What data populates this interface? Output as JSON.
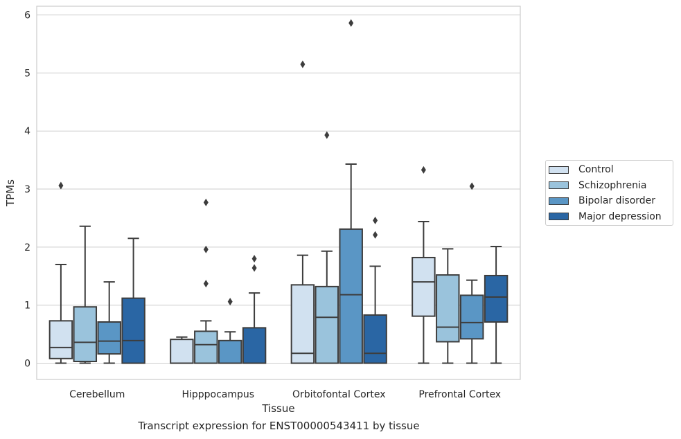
{
  "chart_data": {
    "type": "box",
    "xlabel": "Tissue",
    "ylabel": "TPMs",
    "caption": "Transcript expression for ENST00000543411 by tissue",
    "categories": [
      "Cerebellum",
      "Hipppocampus",
      "Orbitofontal Cortex",
      "Prefrontal Cortex"
    ],
    "ylim": [
      -0.28,
      6.15
    ],
    "yticks": [
      0,
      1,
      2,
      3,
      4,
      5,
      6
    ],
    "grid": "horizontal",
    "legend_position": "right",
    "series": [
      {
        "name": "Control",
        "color": "#d1e1f0",
        "boxes": [
          {
            "whislo": 0.0,
            "q1": 0.08,
            "med": 0.27,
            "q3": 0.73,
            "whishi": 1.7,
            "fliers": [
              3.06
            ]
          },
          {
            "whislo": 0.0,
            "q1": 0.0,
            "med": 0.0,
            "q3": 0.41,
            "whishi": 0.45,
            "fliers": []
          },
          {
            "whislo": 0.0,
            "q1": 0.0,
            "med": 0.17,
            "q3": 1.35,
            "whishi": 1.86,
            "fliers": [
              5.15
            ]
          },
          {
            "whislo": 0.0,
            "q1": 0.81,
            "med": 1.4,
            "q3": 1.82,
            "whishi": 2.44,
            "fliers": [
              3.33
            ]
          }
        ]
      },
      {
        "name": "Schizophrenia",
        "color": "#9ac3dc",
        "boxes": [
          {
            "whislo": 0.0,
            "q1": 0.03,
            "med": 0.36,
            "q3": 0.97,
            "whishi": 2.36,
            "fliers": []
          },
          {
            "whislo": 0.0,
            "q1": 0.0,
            "med": 0.32,
            "q3": 0.55,
            "whishi": 0.73,
            "fliers": [
              1.37,
              1.96,
              2.77
            ]
          },
          {
            "whislo": 0.0,
            "q1": 0.0,
            "med": 0.79,
            "q3": 1.32,
            "whishi": 1.93,
            "fliers": [
              3.93
            ]
          },
          {
            "whislo": 0.0,
            "q1": 0.37,
            "med": 0.62,
            "q3": 1.52,
            "whishi": 1.97,
            "fliers": []
          }
        ]
      },
      {
        "name": "Bipolar disorder",
        "color": "#5a96c5",
        "boxes": [
          {
            "whislo": 0.0,
            "q1": 0.16,
            "med": 0.38,
            "q3": 0.71,
            "whishi": 1.4,
            "fliers": []
          },
          {
            "whislo": 0.0,
            "q1": 0.0,
            "med": 0.0,
            "q3": 0.39,
            "whishi": 0.54,
            "fliers": [
              1.06
            ]
          },
          {
            "whislo": 0.0,
            "q1": 0.0,
            "med": 1.18,
            "q3": 2.31,
            "whishi": 3.43,
            "fliers": [
              5.86
            ]
          },
          {
            "whislo": 0.0,
            "q1": 0.42,
            "med": 0.7,
            "q3": 1.17,
            "whishi": 1.43,
            "fliers": [
              3.05
            ]
          }
        ]
      },
      {
        "name": "Major depression",
        "color": "#2a66a4",
        "boxes": [
          {
            "whislo": 0.0,
            "q1": 0.0,
            "med": 0.39,
            "q3": 1.12,
            "whishi": 2.15,
            "fliers": []
          },
          {
            "whislo": 0.0,
            "q1": 0.0,
            "med": 0.0,
            "q3": 0.61,
            "whishi": 1.21,
            "fliers": [
              1.64,
              1.8
            ]
          },
          {
            "whislo": 0.0,
            "q1": 0.0,
            "med": 0.17,
            "q3": 0.83,
            "whishi": 1.67,
            "fliers": [
              2.21,
              2.46
            ]
          },
          {
            "whislo": 0.0,
            "q1": 0.71,
            "med": 1.14,
            "q3": 1.51,
            "whishi": 2.01,
            "fliers": []
          }
        ]
      }
    ]
  }
}
